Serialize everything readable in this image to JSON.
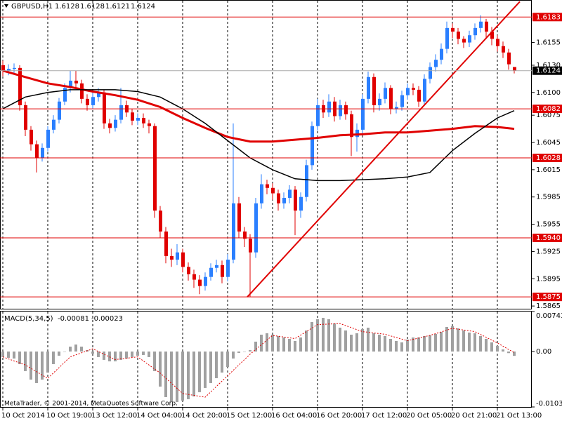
{
  "chart_data": {
    "type": "candlestick",
    "symbol": "GBPUSD,H1",
    "footer": "MetaTrader, © 2001-2014, MetaQuotes Software Corp.",
    "up_color": "#2a7fff",
    "down_color": "#e00000",
    "grid": true,
    "categories": [
      "10 Oct 2014",
      null,
      null,
      null,
      null,
      null,
      null,
      null,
      "10 Oct 19:00",
      null,
      null,
      null,
      null,
      null,
      null,
      null,
      "13 Oct 12:00",
      null,
      null,
      null,
      null,
      null,
      null,
      null,
      "14 Oct 04:00",
      null,
      null,
      null,
      null,
      null,
      null,
      null,
      "14 Oct 20:00",
      null,
      null,
      null,
      null,
      null,
      null,
      null,
      "15 Oct 12:00",
      null,
      null,
      null,
      null,
      null,
      null,
      null,
      "16 Oct 04:00",
      null,
      null,
      null,
      null,
      null,
      null,
      null,
      "16 Oct 20:00",
      null,
      null,
      null,
      null,
      null,
      null,
      null,
      "17 Oct 12:00",
      null,
      null,
      null,
      null,
      null,
      null,
      null,
      "20 Oct 05:00",
      null,
      null,
      null,
      null,
      null,
      null,
      null,
      "20 Oct 21:00",
      null,
      null,
      null,
      null,
      null,
      null,
      null,
      "21 Oct 13:00",
      null,
      null,
      null
    ],
    "open": [
      1.613,
      1.6124,
      1.6126,
      1.6127,
      1.6086,
      1.6059,
      1.6043,
      1.6028,
      1.6039,
      1.6059,
      1.607,
      1.609,
      1.6105,
      1.6113,
      1.611,
      1.6093,
      1.6086,
      1.6095,
      1.61,
      1.6066,
      1.6061,
      1.607,
      1.6086,
      1.6078,
      1.6069,
      1.6072,
      1.6066,
      1.6063,
      1.597,
      1.5947,
      1.592,
      1.5916,
      1.5924,
      1.5908,
      1.59,
      1.5894,
      1.5887,
      1.5897,
      1.5907,
      1.591,
      1.5897,
      1.5916,
      1.5978,
      1.5947,
      1.5939,
      1.5924,
      1.5978,
      1.5999,
      1.5995,
      1.5989,
      1.5978,
      1.5984,
      1.5993,
      1.597,
      1.5985,
      1.602,
      1.6063,
      1.6086,
      1.6078,
      1.609,
      1.6074,
      1.6086,
      1.6076,
      1.6051,
      1.6059,
      1.6093,
      1.6117,
      1.6086,
      1.6093,
      1.6105,
      1.6082,
      1.6084,
      1.6097,
      1.6105,
      1.6103,
      1.609,
      1.6115,
      1.6128,
      1.6136,
      1.6148,
      1.6171,
      1.6167,
      1.6159,
      1.6155,
      1.6163,
      1.6171,
      1.6178,
      1.6167,
      1.6159,
      1.6151,
      1.6144,
      1.6128
    ],
    "high": [
      1.6135,
      1.6131,
      1.6132,
      1.613,
      1.609,
      1.6063,
      1.6047,
      1.6044,
      1.6063,
      1.6075,
      1.6094,
      1.611,
      1.6124,
      1.6124,
      1.6114,
      1.6098,
      1.61,
      1.6105,
      1.6103,
      1.6071,
      1.6075,
      1.6105,
      1.6091,
      1.6082,
      1.6077,
      1.6077,
      1.607,
      1.6066,
      1.5975,
      1.5952,
      1.5928,
      1.5933,
      1.5928,
      1.5913,
      1.5905,
      1.5899,
      1.5902,
      1.5912,
      1.5916,
      1.5915,
      1.5922,
      1.6066,
      1.5985,
      1.5952,
      1.5944,
      1.5984,
      1.601,
      1.6004,
      1.6,
      1.5993,
      1.599,
      1.5998,
      1.5997,
      1.599,
      1.6026,
      1.6068,
      1.6093,
      1.6092,
      1.6098,
      1.6095,
      1.6092,
      1.609,
      1.608,
      1.6066,
      1.6098,
      1.6123,
      1.6121,
      1.6099,
      1.6111,
      1.6108,
      1.609,
      1.6102,
      1.611,
      1.611,
      1.6107,
      1.612,
      1.6133,
      1.6142,
      1.6154,
      1.6178,
      1.6176,
      1.6171,
      1.6162,
      1.6168,
      1.6176,
      1.6185,
      1.6181,
      1.6172,
      1.6163,
      1.6156,
      1.6148,
      1.6128
    ],
    "low": [
      1.6118,
      1.6119,
      1.6121,
      1.608,
      1.6052,
      1.6036,
      1.6012,
      1.6024,
      1.6035,
      1.6055,
      1.6066,
      1.6086,
      1.61,
      1.6104,
      1.6088,
      1.608,
      1.6082,
      1.609,
      1.606,
      1.6055,
      1.6057,
      1.6066,
      1.6073,
      1.6064,
      1.6064,
      1.6061,
      1.6055,
      1.5962,
      1.594,
      1.5912,
      1.5908,
      1.591,
      1.5902,
      1.5893,
      1.5885,
      1.5878,
      1.5882,
      1.5893,
      1.5902,
      1.589,
      1.5892,
      1.5912,
      1.594,
      1.593,
      1.5875,
      1.5918,
      1.5972,
      1.5988,
      1.5982,
      1.597,
      1.5972,
      1.5978,
      1.5943,
      1.5962,
      1.598,
      1.6015,
      1.6058,
      1.6072,
      1.6073,
      1.6068,
      1.607,
      1.607,
      1.603,
      1.6035,
      1.6055,
      1.6088,
      1.6078,
      1.608,
      1.6088,
      1.6076,
      1.6077,
      1.608,
      1.6092,
      1.6097,
      1.6084,
      1.6086,
      1.611,
      1.6123,
      1.6131,
      1.6143,
      1.616,
      1.6153,
      1.6149,
      1.615,
      1.6158,
      1.6166,
      1.616,
      1.6152,
      1.6145,
      1.6138,
      1.6125,
      1.6121
    ],
    "close": [
      1.6124,
      1.6126,
      1.6127,
      1.6086,
      1.6059,
      1.6043,
      1.6028,
      1.6039,
      1.6059,
      1.607,
      1.609,
      1.6105,
      1.6113,
      1.611,
      1.6093,
      1.6086,
      1.6095,
      1.61,
      1.6066,
      1.6061,
      1.607,
      1.6086,
      1.6078,
      1.6069,
      1.6072,
      1.6066,
      1.6063,
      1.597,
      1.5947,
      1.592,
      1.5916,
      1.5924,
      1.5908,
      1.59,
      1.5894,
      1.5887,
      1.5897,
      1.5907,
      1.591,
      1.5897,
      1.5916,
      1.5978,
      1.5947,
      1.5939,
      1.5924,
      1.5978,
      1.5999,
      1.5995,
      1.5989,
      1.5978,
      1.5984,
      1.5993,
      1.597,
      1.5985,
      1.602,
      1.6063,
      1.6086,
      1.6078,
      1.609,
      1.6074,
      1.6086,
      1.6076,
      1.6051,
      1.6059,
      1.6093,
      1.6117,
      1.6086,
      1.6093,
      1.6105,
      1.6082,
      1.6084,
      1.6097,
      1.6105,
      1.6103,
      1.609,
      1.6115,
      1.6128,
      1.6136,
      1.6148,
      1.6171,
      1.6167,
      1.6159,
      1.6155,
      1.6163,
      1.6171,
      1.6178,
      1.6167,
      1.6159,
      1.6151,
      1.6144,
      1.6131,
      1.6124
    ],
    "ylim": [
      1.5862,
      1.6201
    ],
    "yticks": [
      1.6155,
      {
        "value": 1.613,
        "label": "1.6130"
      },
      {
        "value": 1.61,
        "label": "1.6100"
      },
      1.6075,
      1.6045,
      1.6015,
      1.5985,
      1.5955,
      1.5925,
      1.5895,
      1.5865
    ],
    "levels": {
      "color": "#e00000",
      "values": [
        1.6183,
        1.6082,
        1.6028,
        {
          "value": 1.594,
          "label": "1.5940"
        },
        1.5875
      ]
    },
    "moving_averages": [
      {
        "color": "#e00000",
        "x": [
          0,
          4,
          8,
          12,
          16,
          20,
          24,
          28,
          32,
          36,
          40,
          44,
          48,
          52,
          56,
          60,
          64,
          68,
          72,
          76,
          80,
          84,
          88,
          91
        ],
        "values": [
          1.6124,
          1.6117,
          1.611,
          1.6106,
          1.6101,
          1.6097,
          1.6092,
          1.6084,
          1.6072,
          1.6061,
          1.6051,
          1.6046,
          1.6046,
          1.6048,
          1.605,
          1.6053,
          1.6054,
          1.6056,
          1.6056,
          1.6058,
          1.606,
          1.6063,
          1.6062,
          1.606
        ]
      },
      {
        "color": "#000000",
        "x": [
          0,
          4,
          8,
          12,
          16,
          20,
          24,
          28,
          32,
          36,
          40,
          44,
          48,
          52,
          56,
          60,
          64,
          68,
          72,
          76,
          80,
          84,
          88,
          91
        ],
        "values": [
          1.6082,
          1.6095,
          1.61,
          1.6103,
          1.6103,
          1.6103,
          1.6101,
          1.6095,
          1.6082,
          1.6066,
          1.6047,
          1.6028,
          1.6015,
          1.6005,
          1.6003,
          1.6003,
          1.6004,
          1.6005,
          1.6007,
          1.6012,
          1.6036,
          1.6055,
          1.6072,
          1.608
        ]
      }
    ],
    "trendline": {
      "color": "#e00000",
      "x": [
        43.5,
        92
      ],
      "y": [
        1.5875,
        1.62
      ]
    },
    "macd": {
      "label": "MACD(5,34,5)",
      "color": "#a0a0a0",
      "values": [
        -0.00104,
        -0.00117,
        -0.0013,
        -0.00235,
        -0.00365,
        -0.00522,
        -0.00587,
        -0.00522,
        -0.00391,
        -0.00235,
        -0.00078,
        0,
        0.00091,
        0.0013,
        0.00091,
        0.00026,
        -0.00039,
        -0.00104,
        -0.00156,
        -0.00183,
        -0.00183,
        -0.00156,
        -0.0013,
        -0.00104,
        -0.00078,
        -0.00065,
        -0.00104,
        -0.00365,
        -0.00652,
        -0.00848,
        -0.00939,
        -0.00939,
        -0.00913,
        -0.00887,
        -0.00835,
        -0.00756,
        -0.00678,
        -0.00587,
        -0.00496,
        -0.00391,
        -0.00287,
        -0.0013,
        -0.00026,
        0,
        0.00026,
        0.00183,
        0.00313,
        0.00339,
        0.00313,
        0.00287,
        0.00261,
        0.00235,
        0.00196,
        0.00261,
        0.00391,
        0.00548,
        0.006,
        0.00626,
        0.006,
        0.00522,
        0.00443,
        0.00391,
        0.00313,
        0.00339,
        0.00417,
        0.00443,
        0.00339,
        0.00313,
        0.00287,
        0.00235,
        0.00196,
        0.0017,
        0.00222,
        0.00261,
        0.00261,
        0.00287,
        0.003,
        0.00326,
        0.00365,
        0.00456,
        0.00469,
        0.0043,
        0.00391,
        0.00352,
        0.00339,
        0.00287,
        0.00235,
        0.0017,
        0.00104,
        0.00039,
        -0.0003,
        -0.00081
      ],
      "signal": {
        "color": "#e00000",
        "x": [
          0,
          4,
          8,
          12,
          16,
          20,
          24,
          28,
          32,
          36,
          40,
          44,
          48,
          52,
          56,
          60,
          64,
          68,
          72,
          76,
          80,
          84,
          88,
          91
        ],
        "values": [
          -0.001,
          -0.0025,
          -0.005,
          -0.001,
          0.0005,
          -0.0015,
          -0.001,
          -0.004,
          -0.0078,
          -0.0085,
          -0.0045,
          -0.0005,
          0.003,
          0.0024,
          0.005,
          0.0052,
          0.0037,
          0.0032,
          0.002,
          0.003,
          0.0043,
          0.0037,
          0.0016,
          -0.00023
        ]
      },
      "ylim": [
        -0.01031,
        0.00743
      ],
      "yticks": [
        0.00743,
        {
          "value": 0,
          "label": "0.00"
        },
        -0.01031
      ]
    }
  }
}
